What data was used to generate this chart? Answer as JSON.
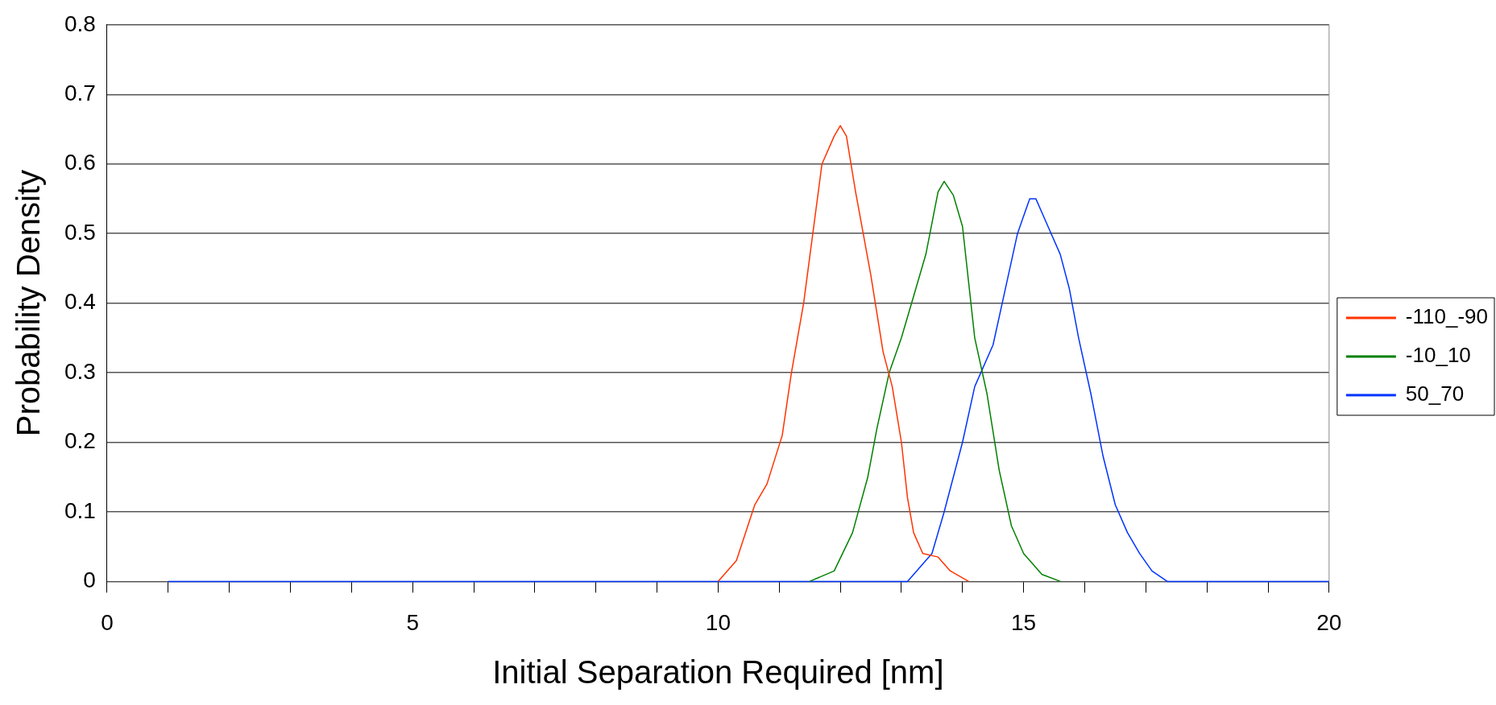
{
  "chart_data": {
    "type": "line",
    "xlabel": "Initial Separation Required [nm]",
    "ylabel": "Probability Density",
    "xlim": [
      0,
      20
    ],
    "xticks": [
      0,
      {
        "value": 1,
        "label": null
      },
      {
        "value": 2,
        "label": null
      },
      {
        "value": 3,
        "label": null
      },
      {
        "value": 4,
        "label": null
      },
      5,
      {
        "value": 6,
        "label": null
      },
      {
        "value": 7,
        "label": null
      },
      {
        "value": 8,
        "label": null
      },
      {
        "value": 9,
        "label": null
      },
      10,
      {
        "value": 11,
        "label": null
      },
      {
        "value": 12,
        "label": null
      },
      {
        "value": 13,
        "label": null
      },
      {
        "value": 14,
        "label": null
      },
      15,
      {
        "value": 16,
        "label": null
      },
      {
        "value": 17,
        "label": null
      },
      {
        "value": 18,
        "label": null
      },
      {
        "value": 19,
        "label": null
      },
      20
    ],
    "ylim": [
      0,
      0.8
    ],
    "yticks": [
      0,
      0.1,
      0.2,
      0.3,
      0.4,
      0.5,
      0.6,
      0.7,
      0.8
    ],
    "grid": "y",
    "legend": "right",
    "marker": "none",
    "line_style": "solid",
    "series": [
      {
        "name": "-110_-90",
        "color": "#ff3300",
        "x": [
          10.0,
          10.3,
          10.6,
          10.8,
          11.05,
          11.2,
          11.4,
          11.55,
          11.7,
          11.9,
          12.0,
          12.1,
          12.25,
          12.5,
          12.7,
          12.85,
          13.0,
          13.1,
          13.2,
          13.35,
          13.6,
          13.8,
          14.1
        ],
        "values": [
          0,
          0.03,
          0.11,
          0.14,
          0.21,
          0.3,
          0.4,
          0.5,
          0.6,
          0.64,
          0.655,
          0.64,
          0.56,
          0.44,
          0.33,
          0.28,
          0.2,
          0.12,
          0.07,
          0.04,
          0.035,
          0.015,
          0
        ]
      },
      {
        "name": "-10_10",
        "color": "#008000",
        "x": [
          11.5,
          11.9,
          12.2,
          12.45,
          12.6,
          12.8,
          13.0,
          13.2,
          13.4,
          13.6,
          13.7,
          13.85,
          14.0,
          14.2,
          14.4,
          14.6,
          14.8,
          15.0,
          15.3,
          15.6
        ],
        "values": [
          0,
          0.015,
          0.07,
          0.15,
          0.22,
          0.3,
          0.35,
          0.41,
          0.47,
          0.56,
          0.575,
          0.555,
          0.51,
          0.35,
          0.27,
          0.16,
          0.08,
          0.04,
          0.01,
          0
        ]
      },
      {
        "name": "50_70",
        "color": "#0033ff",
        "x": [
          1,
          13.1,
          13.5,
          13.7,
          14.0,
          14.2,
          14.5,
          14.7,
          14.9,
          15.1,
          15.2,
          15.4,
          15.6,
          15.75,
          15.9,
          16.1,
          16.3,
          16.5,
          16.7,
          16.9,
          17.1,
          17.35,
          20
        ],
        "values": [
          0,
          0,
          0.04,
          0.1,
          0.2,
          0.28,
          0.34,
          0.42,
          0.5,
          0.55,
          0.55,
          0.51,
          0.47,
          0.42,
          0.35,
          0.27,
          0.18,
          0.11,
          0.07,
          0.04,
          0.015,
          0,
          0
        ]
      }
    ]
  }
}
